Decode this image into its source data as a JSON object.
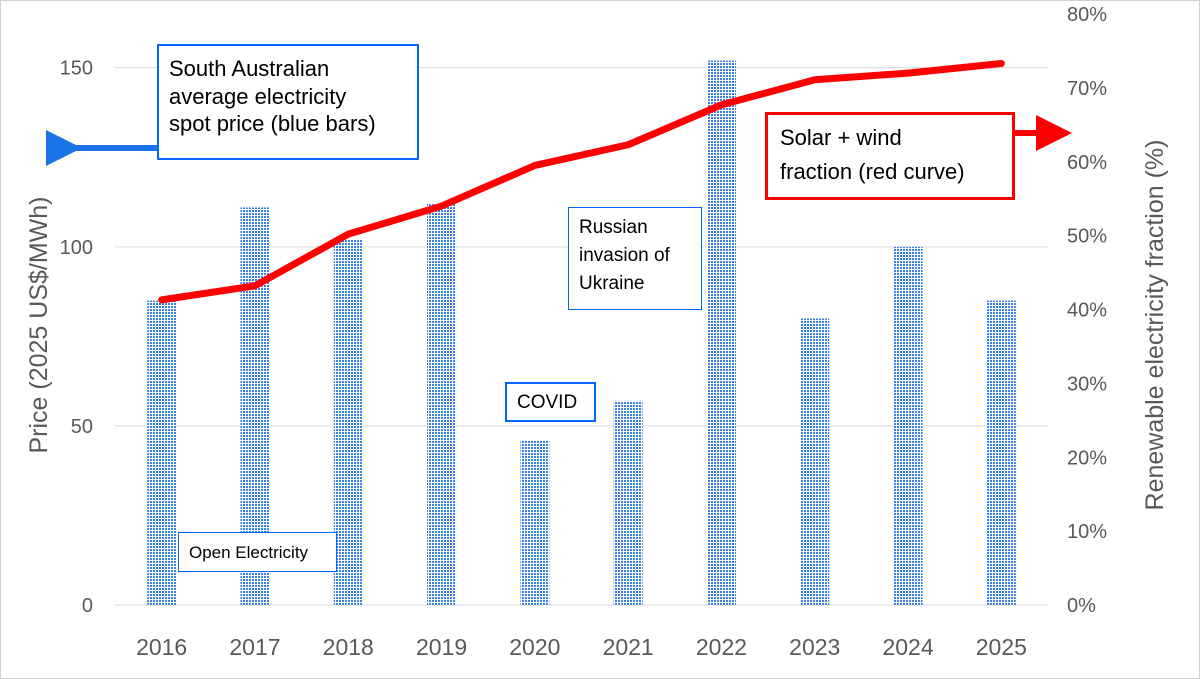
{
  "colors": {
    "bars": "#3b82e8",
    "line": "#ff0000",
    "axis_text": "#595959",
    "grid": "#d9d9d9",
    "blue_box": "#0066ff",
    "red_box": "#ff0000"
  },
  "chart_data": {
    "type": "bar",
    "categories": [
      "2016",
      "2017",
      "2018",
      "2019",
      "2020",
      "2021",
      "2022",
      "2023",
      "2024",
      "2025"
    ],
    "series": [
      {
        "type": "bar",
        "axis": "left",
        "values": [
          85,
          111,
          102,
          112,
          46,
          57,
          152,
          80,
          100,
          85
        ]
      },
      {
        "type": "line",
        "axis": "right",
        "unit": "%",
        "values": [
          41.3,
          43.2,
          50.2,
          54.0,
          59.5,
          62.3,
          67.7,
          71.1,
          72.0,
          73.3
        ]
      }
    ],
    "ylabel": "Price (2025 US$/MWh)",
    "y2label": "Renewable electricity fraction (%)",
    "ylim": [
      0,
      165
    ],
    "yticks": [
      "0",
      "50",
      "100",
      "150"
    ],
    "y2lim": [
      0,
      80
    ],
    "y2ticks": [
      "0%",
      "10%",
      "20%",
      "30%",
      "40%",
      "50%",
      "60%",
      "70%",
      "80%"
    ],
    "grid": true,
    "annotations": {
      "price": [
        "South Australian",
        "average electricity",
        "spot price (blue bars)"
      ],
      "solar": [
        "Solar + wind",
        "fraction (red curve)"
      ],
      "russia": [
        "Russian",
        "invasion of",
        "Ukraine"
      ],
      "covid": "COVID",
      "source": "Open Electricity"
    }
  }
}
